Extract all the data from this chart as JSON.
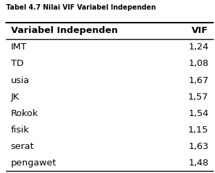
{
  "title": "Tabel 4.7 Nilai VIF Variabel Independen",
  "col1_header": "Variabel Independen",
  "col2_header": "VIF",
  "rows": [
    [
      "IMT",
      "1,24"
    ],
    [
      "TD",
      "1,08"
    ],
    [
      "usia",
      "1,67"
    ],
    [
      "JK",
      "1,57"
    ],
    [
      "Rokok",
      "1,54"
    ],
    [
      "fisik",
      "1,15"
    ],
    [
      "serat",
      "1,63"
    ],
    [
      "pengawet",
      "1,48"
    ]
  ],
  "bg_color": "#ffffff",
  "text_color": "#000000",
  "title_fontsize": 7.0,
  "header_fontsize": 9.5,
  "row_fontsize": 9.5
}
